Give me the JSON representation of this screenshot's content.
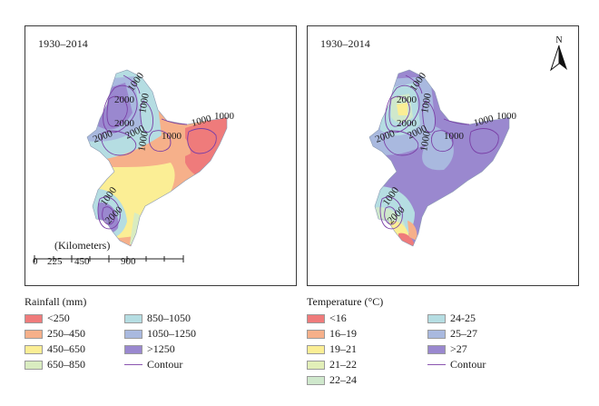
{
  "panels": [
    {
      "period": "1930–2014",
      "scale": {
        "title": "(Kilometers)",
        "ticks": [
          "0",
          "225",
          "450",
          "900"
        ]
      },
      "contour_labels": [
        "1000",
        "2000",
        "1000",
        "2000",
        "1000",
        "2000",
        "2000",
        "1000",
        "1000",
        "1000",
        "1000",
        "2000"
      ]
    },
    {
      "period": "1930–2014",
      "north_label": "N",
      "contour_labels": [
        "1000",
        "2000",
        "1000",
        "2000",
        "1000",
        "2000",
        "2000",
        "1000",
        "1000",
        "1000",
        "1000",
        "2000"
      ]
    }
  ],
  "legends": {
    "rainfall": {
      "title": "Rainfall (mm)",
      "items": [
        {
          "label": "<250",
          "color": "#ef7b7b"
        },
        {
          "label": "250–450",
          "color": "#f6b08a"
        },
        {
          "label": "450–650",
          "color": "#fbee95"
        },
        {
          "label": "650–850",
          "color": "#d9ecc0"
        },
        {
          "label": "850–1050",
          "color": "#b5dde2"
        },
        {
          "label": "1050–1250",
          "color": "#a9b9df"
        },
        {
          "label": ">1250",
          "color": "#9a88cf"
        },
        {
          "label": "Contour",
          "color": "#8b55b0",
          "kind": "line"
        }
      ]
    },
    "temperature": {
      "title": "Temperature (°C)",
      "items": [
        {
          "label": "<16",
          "color": "#ef7b7b"
        },
        {
          "label": "16–19",
          "color": "#f6b08a"
        },
        {
          "label": "19–21",
          "color": "#fbee95"
        },
        {
          "label": "21–22",
          "color": "#e2efb8"
        },
        {
          "label": "22–24",
          "color": "#cfe8cc"
        },
        {
          "label": "24-25",
          "color": "#b5dde2"
        },
        {
          "label": "25–27",
          "color": "#a9b9df"
        },
        {
          "label": ">27",
          "color": "#9a88cf"
        },
        {
          "label": "Contour",
          "color": "#8b55b0",
          "kind": "line"
        }
      ]
    }
  }
}
